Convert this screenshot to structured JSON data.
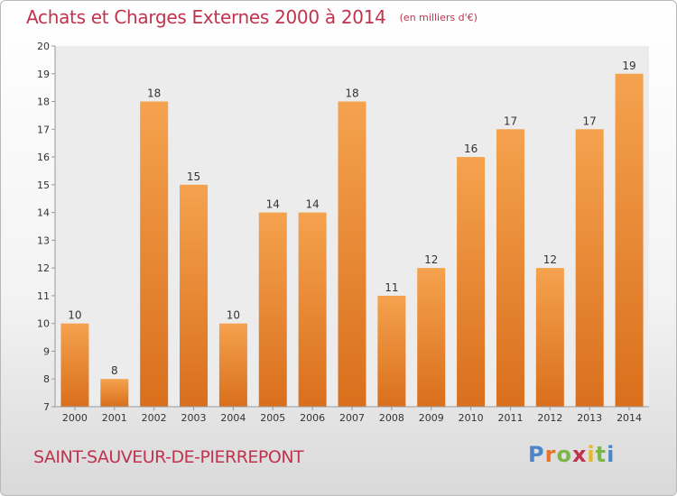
{
  "title": "Achats et Charges Externes 2000 à 2014",
  "unit": "(en milliers d'€)",
  "city": "SAINT-SAUVEUR-DE-PIERREPONT",
  "logo": "Proxiti",
  "colors": {
    "accent": "#c0334e",
    "bar_light": "#f5a24e",
    "bar_dark": "#d96f1c"
  },
  "chart_data": {
    "type": "bar",
    "title": "Achats et Charges Externes 2000 à 2014",
    "xlabel": "",
    "ylabel": "",
    "categories": [
      "2000",
      "2001",
      "2002",
      "2003",
      "2004",
      "2005",
      "2006",
      "2007",
      "2008",
      "2009",
      "2010",
      "2011",
      "2012",
      "2013",
      "2014"
    ],
    "values": [
      10,
      8,
      18,
      15,
      10,
      14,
      14,
      18,
      11,
      12,
      16,
      17,
      12,
      17,
      19
    ],
    "value_labels": [
      "10",
      "8",
      "18",
      "15",
      "10",
      "14",
      "14",
      "18",
      "11",
      "12",
      "16",
      "17",
      "12",
      "17",
      "19"
    ],
    "ylim": [
      7,
      20
    ],
    "yticks": [
      "7",
      "8",
      "9",
      "10",
      "11",
      "12",
      "13",
      "14",
      "15",
      "16",
      "17",
      "18",
      "19",
      "20"
    ],
    "grid": false
  }
}
